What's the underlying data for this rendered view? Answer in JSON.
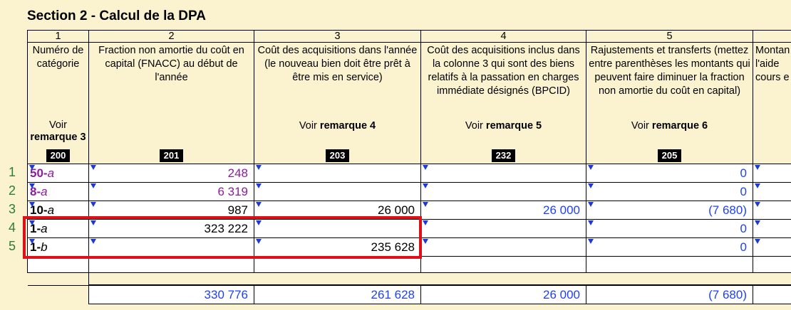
{
  "title": "Section 2 - Calcul de la DPA",
  "columns": [
    {
      "num": "1",
      "desc": "Numéro de catégorie",
      "see_prefix": "Voir",
      "see_bold": "remarque 3",
      "code": "200"
    },
    {
      "num": "2",
      "desc": "Fraction non amortie du coût en capital (FNACC) au début de l'année",
      "see_prefix": "",
      "see_bold": "",
      "code": "201"
    },
    {
      "num": "3",
      "desc": "Coût des acquisitions dans l'année (le nouveau bien doit être prêt à être mis en service)",
      "see_prefix": "Voir",
      "see_bold": "remarque 4",
      "code": "203"
    },
    {
      "num": "4",
      "desc": "Coût des acquisitions inclus dans la colonne 3 qui sont des biens relatifs à la passation en charges immédiate désignés (BPCID)",
      "see_prefix": "Voir",
      "see_bold": "remarque 5",
      "code": "232"
    },
    {
      "num": "5",
      "desc": "Rajustements et transferts (mettez entre parenthèses les montants qui peuvent faire diminuer la fraction non amortie du coût en capital)",
      "see_prefix": "Voir",
      "see_bold": "remarque 6",
      "code": "205"
    },
    {
      "num": "",
      "desc": "Montan l'aide cours e a",
      "see_prefix": "",
      "see_bold": "",
      "code": ""
    }
  ],
  "rows": [
    {
      "line": "1",
      "cat_num": "50-",
      "cat_letter": "a",
      "c2": "248",
      "c3": "",
      "c4": "",
      "c5": "0",
      "cat_color": "purple",
      "c2_color": "purple"
    },
    {
      "line": "2",
      "cat_num": "8-",
      "cat_letter": "a",
      "c2": "6 319",
      "c3": "",
      "c4": "",
      "c5": "0",
      "cat_color": "purple",
      "c2_color": "purple"
    },
    {
      "line": "3",
      "cat_num": "10-",
      "cat_letter": "a",
      "c2": "987",
      "c3": "26 000",
      "c4": "26 000",
      "c5": "(7 680)",
      "cat_color": "black",
      "c2_color": "black"
    },
    {
      "line": "4",
      "cat_num": "1-",
      "cat_letter": "a",
      "c2": "323 222",
      "c3": "",
      "c4": "",
      "c5": "0",
      "cat_color": "black",
      "c2_color": "black"
    },
    {
      "line": "5",
      "cat_num": "1-",
      "cat_letter": "b",
      "c2": "",
      "c3": "235 628",
      "c4": "",
      "c5": "0",
      "cat_color": "black",
      "c2_color": "black"
    }
  ],
  "totals": {
    "c2": "330 776",
    "c3": "261 628",
    "c4": "26 000",
    "c5": "(7 680)"
  },
  "colors": {
    "purple": "#8b1c9c",
    "blue": "#1f3fff",
    "highlight": "#e0101a",
    "background": "#fbf2cf"
  }
}
